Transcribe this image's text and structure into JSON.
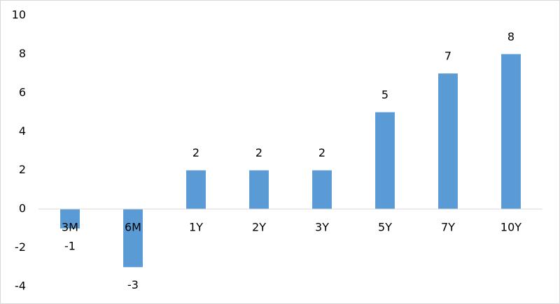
{
  "chart_data": {
    "type": "bar",
    "categories": [
      "3M",
      "6M",
      "1Y",
      "2Y",
      "3Y",
      "5Y",
      "7Y",
      "10Y"
    ],
    "values": [
      -1,
      -3,
      2,
      2,
      2,
      5,
      7,
      8
    ],
    "color": "#5b9bd5",
    "ylim": [
      -4,
      10
    ],
    "yticks": [
      -4,
      -2,
      0,
      2,
      4,
      6,
      8,
      10
    ],
    "grid": false
  }
}
